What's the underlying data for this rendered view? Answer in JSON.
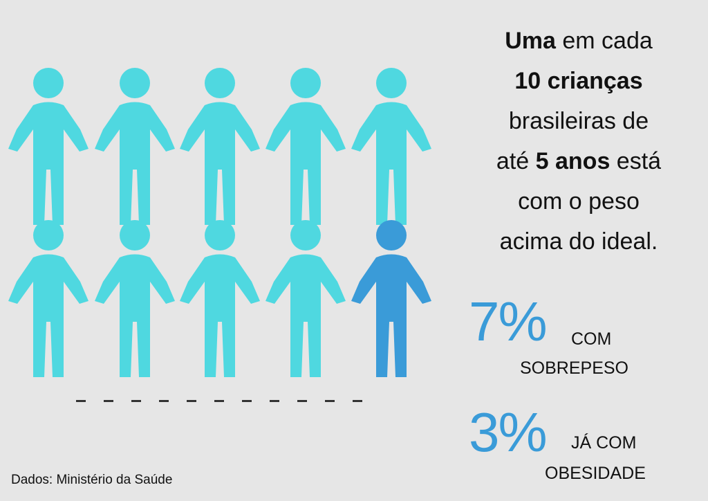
{
  "colors": {
    "background": "#e6e6e6",
    "figure_default": "#4fd8e0",
    "figure_highlight": "#3a9bd8",
    "accent_text": "#3a9bd8"
  },
  "figures": {
    "total": 10,
    "highlighted": 1,
    "icon": "child-figure-icon"
  },
  "headline": {
    "l1_bold": "Uma",
    "l1_rest": " em cada",
    "l2_bold": "10 crianças",
    "l3": "brasileiras de",
    "l4_pre": "até ",
    "l4_bold": "5 anos",
    "l4_post": " está",
    "l5": "com o peso",
    "l6": "acima do ideal."
  },
  "stats": [
    {
      "value": "7%",
      "label_line1": "COM",
      "label_line2": "SOBREPESO"
    },
    {
      "value": "3%",
      "label_line1": "JÁ COM",
      "label_line2": "OBESIDADE"
    }
  ],
  "source": "Dados: Ministério da Saúde"
}
